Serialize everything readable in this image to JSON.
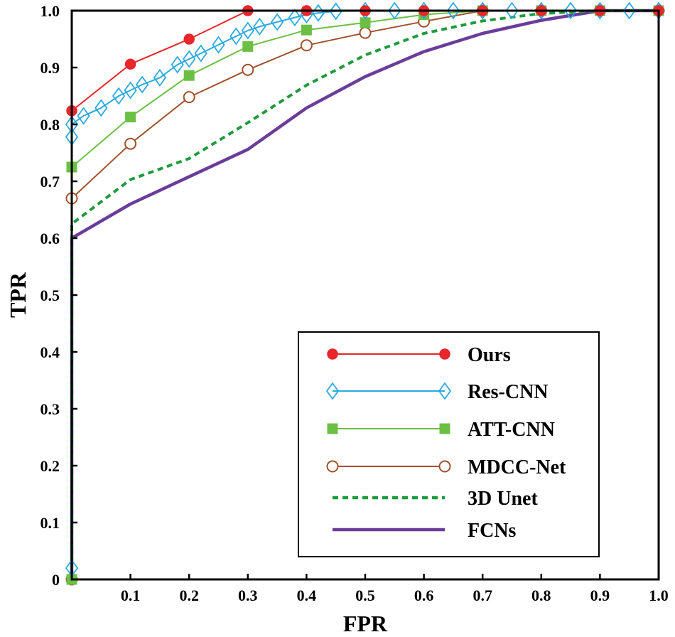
{
  "chart_data": {
    "type": "line",
    "title": "",
    "xlabel": "FPR",
    "ylabel": "TPR",
    "xlim": [
      0,
      1
    ],
    "ylim": [
      0,
      1
    ],
    "xticks": [
      "0.1",
      "0.2",
      "0.3",
      "0.4",
      "0.5",
      "0.6",
      "0.7",
      "0.8",
      "0.9",
      "1.0"
    ],
    "xtick_values": [
      0.1,
      0.2,
      0.3,
      0.4,
      0.5,
      0.6,
      0.7,
      0.8,
      0.9,
      1.0
    ],
    "yticks": [
      "0",
      "0.1",
      "0.2",
      "0.3",
      "0.4",
      "0.5",
      "0.6",
      "0.7",
      "0.8",
      "0.9",
      "1.0"
    ],
    "ytick_values": [
      0,
      0.1,
      0.2,
      0.3,
      0.4,
      0.5,
      0.6,
      0.7,
      0.8,
      0.9,
      1.0
    ],
    "legend_position": "bottom-right",
    "series": [
      {
        "name": "Ours",
        "color": "#e8262b",
        "marker": "circle-filled",
        "dash": "solid",
        "x": [
          0,
          0,
          0.1,
          0.2,
          0.3,
          0.4,
          0.5,
          0.6,
          0.7,
          0.8,
          0.9,
          1.0
        ],
        "y": [
          0,
          0.824,
          0.906,
          0.95,
          1.0,
          1.0,
          1.0,
          1.0,
          1.0,
          1.0,
          1.0,
          1.0
        ],
        "marker_x": [
          0,
          0.1,
          0.2,
          0.3,
          0.4,
          0.5,
          0.6,
          0.7,
          0.8,
          0.9,
          1.0
        ],
        "marker_y": [
          0.824,
          0.906,
          0.95,
          1.0,
          1.0,
          1.0,
          1.0,
          1.0,
          1.0,
          1.0,
          1.0
        ]
      },
      {
        "name": "Res-CNN",
        "color": "#29a9e0",
        "marker": "diamond-open",
        "dash": "solid",
        "x": [
          0,
          0,
          0,
          0.02,
          0.05,
          0.08,
          0.1,
          0.12,
          0.15,
          0.18,
          0.2,
          0.22,
          0.25,
          0.28,
          0.3,
          0.32,
          0.35,
          0.38,
          0.4,
          0.42,
          0.45,
          0.5,
          0.55,
          0.6,
          0.65,
          0.7,
          0.75,
          0.8,
          0.85,
          0.9,
          0.95,
          1.0
        ],
        "y": [
          0.02,
          0.778,
          0.8,
          0.815,
          0.829,
          0.85,
          0.86,
          0.87,
          0.882,
          0.905,
          0.915,
          0.925,
          0.94,
          0.955,
          0.965,
          0.972,
          0.98,
          0.988,
          0.993,
          0.996,
          0.999,
          1.0,
          1.0,
          1.0,
          1.0,
          1.0,
          1.0,
          1.0,
          1.0,
          1.0,
          1.0,
          1.0
        ],
        "marker_x": [
          0,
          0,
          0,
          0.02,
          0.05,
          0.08,
          0.1,
          0.12,
          0.15,
          0.18,
          0.2,
          0.22,
          0.25,
          0.28,
          0.3,
          0.32,
          0.35,
          0.38,
          0.4,
          0.42,
          0.45,
          0.5,
          0.55,
          0.6,
          0.65,
          0.7,
          0.75,
          0.8,
          0.85,
          0.9,
          0.95,
          1.0
        ],
        "marker_y": [
          0.02,
          0.778,
          0.8,
          0.815,
          0.829,
          0.85,
          0.86,
          0.87,
          0.882,
          0.905,
          0.915,
          0.925,
          0.94,
          0.955,
          0.965,
          0.972,
          0.98,
          0.988,
          0.993,
          0.996,
          0.999,
          1.0,
          1.0,
          1.0,
          1.0,
          1.0,
          1.0,
          1.0,
          1.0,
          1.0,
          1.0,
          1.0
        ]
      },
      {
        "name": "ATT-CNN",
        "color": "#6cbf45",
        "marker": "square-filled",
        "dash": "solid",
        "x": [
          0,
          0,
          0.1,
          0.2,
          0.3,
          0.4,
          0.5,
          0.6,
          0.7,
          0.8,
          0.9,
          1.0
        ],
        "y": [
          0,
          0.725,
          0.813,
          0.886,
          0.937,
          0.966,
          0.979,
          0.993,
          1.0,
          1.0,
          1.0,
          1.0
        ],
        "marker_x": [
          0,
          0,
          0.1,
          0.2,
          0.3,
          0.4,
          0.5,
          0.6,
          0.7,
          0.8,
          0.9,
          1.0
        ],
        "marker_y": [
          0,
          0.725,
          0.813,
          0.886,
          0.937,
          0.966,
          0.979,
          0.993,
          1.0,
          1.0,
          1.0,
          1.0
        ]
      },
      {
        "name": "MDCC-Net",
        "color": "#a0522d",
        "marker": "circle-open",
        "dash": "solid",
        "x": [
          0,
          0,
          0.1,
          0.2,
          0.3,
          0.4,
          0.5,
          0.6,
          0.7,
          0.8,
          0.9,
          1.0
        ],
        "y": [
          0,
          0.67,
          0.766,
          0.848,
          0.896,
          0.939,
          0.961,
          0.981,
          1.0,
          1.0,
          1.0,
          1.0
        ],
        "marker_x": [
          0,
          0,
          0.1,
          0.2,
          0.3,
          0.4,
          0.5,
          0.6,
          0.7,
          0.8,
          0.9,
          1.0
        ],
        "marker_y": [
          0,
          0.67,
          0.766,
          0.848,
          0.896,
          0.939,
          0.961,
          0.981,
          1.0,
          1.0,
          1.0,
          1.0
        ]
      },
      {
        "name": "3D Unet",
        "color": "#1e9b3c",
        "marker": "none",
        "dash": "dashed",
        "x": [
          0,
          0,
          0.1,
          0.2,
          0.3,
          0.4,
          0.5,
          0.6,
          0.7,
          0.8,
          0.9,
          1.0
        ],
        "y": [
          0,
          0.625,
          0.703,
          0.74,
          0.803,
          0.869,
          0.922,
          0.96,
          0.982,
          0.995,
          1.0,
          1.0
        ],
        "marker_x": [],
        "marker_y": []
      },
      {
        "name": "FCNs",
        "color": "#6a3d9a",
        "marker": "none",
        "dash": "solid",
        "x": [
          0,
          0,
          0.1,
          0.2,
          0.3,
          0.4,
          0.5,
          0.6,
          0.7,
          0.8,
          0.9,
          1.0
        ],
        "y": [
          0,
          0.6,
          0.66,
          0.708,
          0.756,
          0.829,
          0.884,
          0.928,
          0.96,
          0.983,
          1.0,
          1.0
        ],
        "marker_x": [],
        "marker_y": []
      }
    ]
  }
}
